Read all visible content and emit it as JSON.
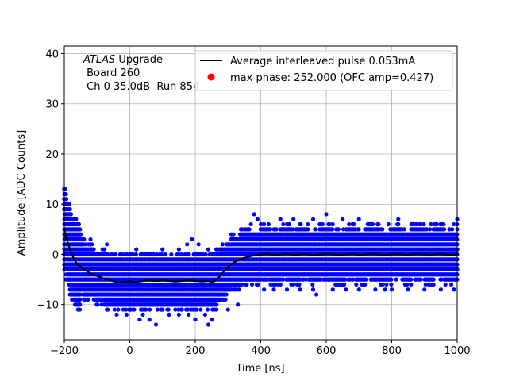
{
  "chart_data": {
    "type": "scatter",
    "xlabel": "Time [ns]",
    "ylabel": "Amplitude [ADC Counts]",
    "xlim": [
      -200,
      1000
    ],
    "ylim": [
      -17,
      41.5
    ],
    "x_ticks": [
      -200,
      0,
      200,
      400,
      600,
      800,
      1000
    ],
    "y_ticks": [
      -10,
      0,
      10,
      20,
      30,
      40
    ],
    "grid": true,
    "legend_position": "top-right",
    "annotation": {
      "italic": "ATLAS",
      "line1": " Upgrade",
      "line2": " Board 260",
      "line3": " Ch 0 35.0dB  Run 854"
    },
    "series": [
      {
        "name": "Average interleaved pulse 0.053mA",
        "kind": "line",
        "color": "#000000",
        "points": [
          [
            -200,
            5
          ],
          [
            -190,
            2.5
          ],
          [
            -180,
            0.5
          ],
          [
            -170,
            -1
          ],
          [
            -160,
            -2
          ],
          [
            -140,
            -3
          ],
          [
            -120,
            -3.8
          ],
          [
            -100,
            -4.3
          ],
          [
            -80,
            -4.8
          ],
          [
            -60,
            -5.2
          ],
          [
            -40,
            -5.5
          ],
          [
            -20,
            -5.5
          ],
          [
            0,
            -5.4
          ],
          [
            20,
            -5.5
          ],
          [
            40,
            -5.3
          ],
          [
            60,
            -5.2
          ],
          [
            80,
            -5.3
          ],
          [
            100,
            -5.2
          ],
          [
            120,
            -5.3
          ],
          [
            140,
            -5.4
          ],
          [
            160,
            -5.3
          ],
          [
            180,
            -5.2
          ],
          [
            200,
            -5.3
          ],
          [
            220,
            -5.4
          ],
          [
            240,
            -5.3
          ],
          [
            250,
            -5.5
          ],
          [
            260,
            -5.3
          ],
          [
            270,
            -4.7
          ],
          [
            280,
            -4
          ],
          [
            290,
            -3.2
          ],
          [
            300,
            -2.5
          ],
          [
            320,
            -1.5
          ],
          [
            340,
            -0.9
          ],
          [
            360,
            -0.5
          ],
          [
            380,
            -0.2
          ],
          [
            400,
            0
          ],
          [
            420,
            0.1
          ],
          [
            440,
            -0.1
          ],
          [
            460,
            0
          ],
          [
            480,
            0.1
          ],
          [
            500,
            -0.1
          ],
          [
            520,
            0
          ],
          [
            540,
            0.1
          ],
          [
            560,
            -0.2
          ],
          [
            580,
            0
          ],
          [
            600,
            0.1
          ],
          [
            620,
            0
          ],
          [
            640,
            -0.1
          ],
          [
            660,
            0
          ],
          [
            680,
            0.1
          ],
          [
            700,
            -0.1
          ],
          [
            720,
            0
          ],
          [
            740,
            0.1
          ],
          [
            760,
            0
          ],
          [
            780,
            -0.1
          ],
          [
            800,
            0
          ],
          [
            820,
            0.1
          ],
          [
            840,
            -0.1
          ],
          [
            860,
            0
          ],
          [
            880,
            0.1
          ],
          [
            900,
            0
          ],
          [
            920,
            -0.1
          ],
          [
            940,
            0.1
          ],
          [
            960,
            0
          ],
          [
            980,
            -0.1
          ],
          [
            1000,
            0
          ]
        ]
      },
      {
        "name": "max phase: 252.000 (OFC amp=0.427)",
        "kind": "marker",
        "color": "#ff0000",
        "points": []
      },
      {
        "name": "",
        "kind": "scatter",
        "color": "#0000ff",
        "band_levels": [
          -12,
          -11,
          -10,
          -9,
          -8,
          -7,
          -6,
          -5,
          -4,
          -3,
          -2,
          -1,
          0,
          1,
          2,
          3,
          4,
          5,
          6,
          7,
          8,
          9,
          10,
          11,
          12,
          13
        ],
        "outlier_points": [
          [
            -200,
            13
          ],
          [
            -200,
            12
          ],
          [
            -200,
            10
          ],
          [
            -195,
            9
          ],
          [
            -190,
            8
          ],
          [
            -185,
            7
          ],
          [
            -180,
            7
          ],
          [
            -175,
            7
          ],
          [
            -150,
            4
          ],
          [
            -140,
            3
          ],
          [
            -120,
            3
          ],
          [
            -70,
            2
          ],
          [
            -25,
            -1
          ],
          [
            20,
            1
          ],
          [
            100,
            1
          ],
          [
            150,
            1
          ],
          [
            175,
            2
          ],
          [
            190,
            3
          ],
          [
            210,
            2
          ],
          [
            240,
            1
          ],
          [
            -40,
            -12
          ],
          [
            -10,
            -12
          ],
          [
            30,
            -13
          ],
          [
            40,
            -12
          ],
          [
            60,
            -13
          ],
          [
            120,
            -12
          ],
          [
            150,
            -12
          ],
          [
            180,
            -12
          ],
          [
            230,
            -12
          ],
          [
            250,
            -13
          ],
          [
            -70,
            -11
          ],
          [
            100,
            -11
          ],
          [
            80,
            -14
          ],
          [
            200,
            -13
          ],
          [
            240,
            -14
          ],
          [
            300,
            -11
          ],
          [
            330,
            -10
          ],
          [
            370,
            6
          ],
          [
            380,
            8
          ],
          [
            390,
            7
          ],
          [
            410,
            6
          ],
          [
            420,
            5
          ],
          [
            440,
            5
          ],
          [
            460,
            7
          ],
          [
            480,
            6
          ],
          [
            500,
            7
          ],
          [
            520,
            6
          ],
          [
            560,
            7
          ],
          [
            580,
            6
          ],
          [
            600,
            8
          ],
          [
            620,
            6
          ],
          [
            650,
            7
          ],
          [
            680,
            6
          ],
          [
            700,
            7
          ],
          [
            730,
            6
          ],
          [
            760,
            6
          ],
          [
            790,
            6
          ],
          [
            820,
            7
          ],
          [
            860,
            6
          ],
          [
            890,
            6
          ],
          [
            920,
            6
          ],
          [
            950,
            6
          ],
          [
            990,
            6
          ],
          [
            1000,
            7
          ],
          [
            340,
            5
          ],
          [
            365,
            5
          ],
          [
            570,
            -8
          ],
          [
            410,
            -7
          ],
          [
            440,
            -7
          ],
          [
            480,
            -7
          ],
          [
            520,
            -7
          ],
          [
            560,
            -7
          ],
          [
            620,
            -7
          ],
          [
            660,
            -7
          ],
          [
            700,
            -7
          ],
          [
            750,
            -7
          ],
          [
            780,
            -7
          ],
          [
            800,
            -7
          ],
          [
            850,
            -7
          ],
          [
            900,
            -7
          ],
          [
            950,
            -7
          ],
          [
            990,
            -7
          ]
        ]
      }
    ]
  }
}
